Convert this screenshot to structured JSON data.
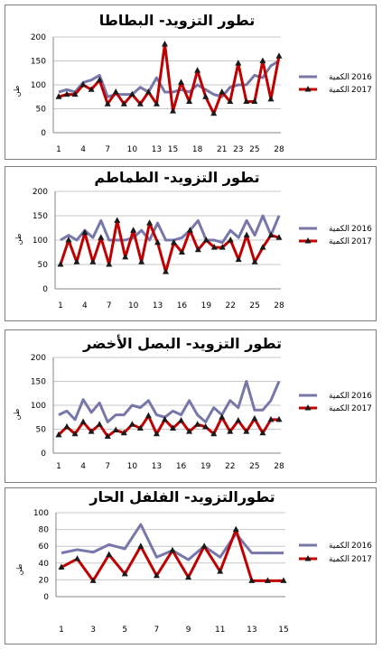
{
  "colors": {
    "y2016": "#7777aa",
    "y2017": "#c00000",
    "grid": "#c8c8c8",
    "axis": "#868686"
  },
  "chart_data": [
    {
      "type": "line",
      "title": "تطور التزويد- البطاطا",
      "ylabel": "طن",
      "ylim": [
        0,
        200
      ],
      "yticks": [
        0,
        50,
        100,
        150,
        200
      ],
      "xticks": [
        "1",
        "4",
        "7",
        "10",
        "13",
        "15",
        "18",
        "21",
        "23",
        "25",
        "28"
      ],
      "x": [
        1,
        2,
        3,
        4,
        5,
        6,
        7,
        8,
        9,
        10,
        11,
        12,
        13,
        14,
        15,
        16,
        17,
        18,
        19,
        20,
        21,
        22,
        23,
        24,
        25,
        26,
        27,
        28
      ],
      "series": [
        {
          "name": "2016",
          "name_word": "الكمية",
          "values": [
            85,
            90,
            85,
            105,
            110,
            120,
            75,
            80,
            80,
            80,
            95,
            85,
            115,
            85,
            85,
            90,
            85,
            100,
            90,
            80,
            75,
            95,
            100,
            100,
            120,
            115,
            140,
            150
          ]
        },
        {
          "name": "2017",
          "name_word": "الكمية",
          "values": [
            75,
            80,
            80,
            100,
            90,
            110,
            60,
            85,
            60,
            80,
            60,
            85,
            60,
            185,
            45,
            105,
            65,
            130,
            75,
            40,
            85,
            65,
            145,
            65,
            65,
            150,
            70,
            160
          ]
        }
      ],
      "legend": "right"
    },
    {
      "type": "line",
      "title": "تطور التزويد- الطماطم",
      "ylabel": "طن",
      "ylim": [
        0,
        200
      ],
      "yticks": [
        0,
        50,
        100,
        150,
        200
      ],
      "xticks": [
        "1",
        "4",
        "7",
        "10",
        "13",
        "16",
        "19",
        "22",
        "25",
        "28"
      ],
      "x": [
        1,
        2,
        3,
        4,
        5,
        6,
        7,
        8,
        9,
        10,
        11,
        12,
        13,
        14,
        15,
        16,
        17,
        18,
        19,
        20,
        21,
        22,
        23,
        24,
        25,
        26,
        27,
        28
      ],
      "series": [
        {
          "name": "2016",
          "name_word": "الكمية",
          "values": [
            100,
            110,
            100,
            120,
            105,
            140,
            100,
            100,
            100,
            105,
            120,
            100,
            135,
            100,
            100,
            105,
            120,
            140,
            100,
            100,
            95,
            120,
            105,
            140,
            110,
            150,
            110,
            150
          ]
        },
        {
          "name": "2017",
          "name_word": "الكمية",
          "values": [
            50,
            100,
            55,
            115,
            55,
            105,
            50,
            140,
            65,
            120,
            55,
            135,
            95,
            35,
            95,
            75,
            120,
            80,
            100,
            85,
            85,
            100,
            60,
            110,
            55,
            85,
            110,
            105
          ]
        }
      ],
      "legend": "right"
    },
    {
      "type": "line",
      "title": "تطور التزويد- البصل الأخضر",
      "ylabel": "طن",
      "ylim": [
        0,
        200
      ],
      "yticks": [
        0,
        50,
        100,
        150,
        200
      ],
      "xticks": [
        "1",
        "4",
        "7",
        "10",
        "13",
        "16",
        "19",
        "22",
        "25",
        "28"
      ],
      "x": [
        1,
        2,
        3,
        4,
        5,
        6,
        7,
        8,
        9,
        10,
        11,
        12,
        13,
        14,
        15,
        16,
        17,
        18,
        19,
        20,
        21,
        22,
        23,
        24,
        25,
        26,
        27,
        28
      ],
      "series": [
        {
          "name": "2016",
          "name_word": "الكمية",
          "values": [
            80,
            88,
            70,
            112,
            85,
            105,
            65,
            80,
            80,
            100,
            95,
            110,
            80,
            75,
            88,
            80,
            110,
            80,
            65,
            95,
            80,
            110,
            95,
            150,
            90,
            90,
            110,
            150
          ]
        },
        {
          "name": "2017",
          "name_word": "الكمية",
          "values": [
            38,
            55,
            40,
            65,
            45,
            60,
            35,
            48,
            42,
            60,
            52,
            78,
            40,
            70,
            52,
            68,
            45,
            60,
            55,
            40,
            75,
            45,
            68,
            45,
            72,
            42,
            70,
            70
          ]
        }
      ],
      "legend": "right"
    },
    {
      "type": "line",
      "title": "تطورالتزويد- الفلفل الحار",
      "ylabel": "طن",
      "ylim": [
        0,
        100
      ],
      "yticks": [
        0,
        20,
        40,
        60,
        80,
        100
      ],
      "xticks": [
        "1",
        "3",
        "5",
        "7",
        "9",
        "11",
        "13",
        "15"
      ],
      "x": [
        1,
        2,
        3,
        4,
        5,
        6,
        7,
        8,
        9,
        10,
        11,
        12,
        13,
        14,
        15
      ],
      "series": [
        {
          "name": "2016",
          "name_word": "الكمية",
          "values": [
            52,
            56,
            53,
            62,
            57,
            86,
            47,
            55,
            44,
            60,
            47,
            75,
            52,
            52,
            52
          ]
        },
        {
          "name": "2017",
          "name_word": "الكمية",
          "values": [
            35,
            45,
            19,
            50,
            27,
            60,
            25,
            55,
            23,
            60,
            30,
            80,
            19,
            19,
            19
          ]
        }
      ],
      "legend": "right"
    }
  ]
}
